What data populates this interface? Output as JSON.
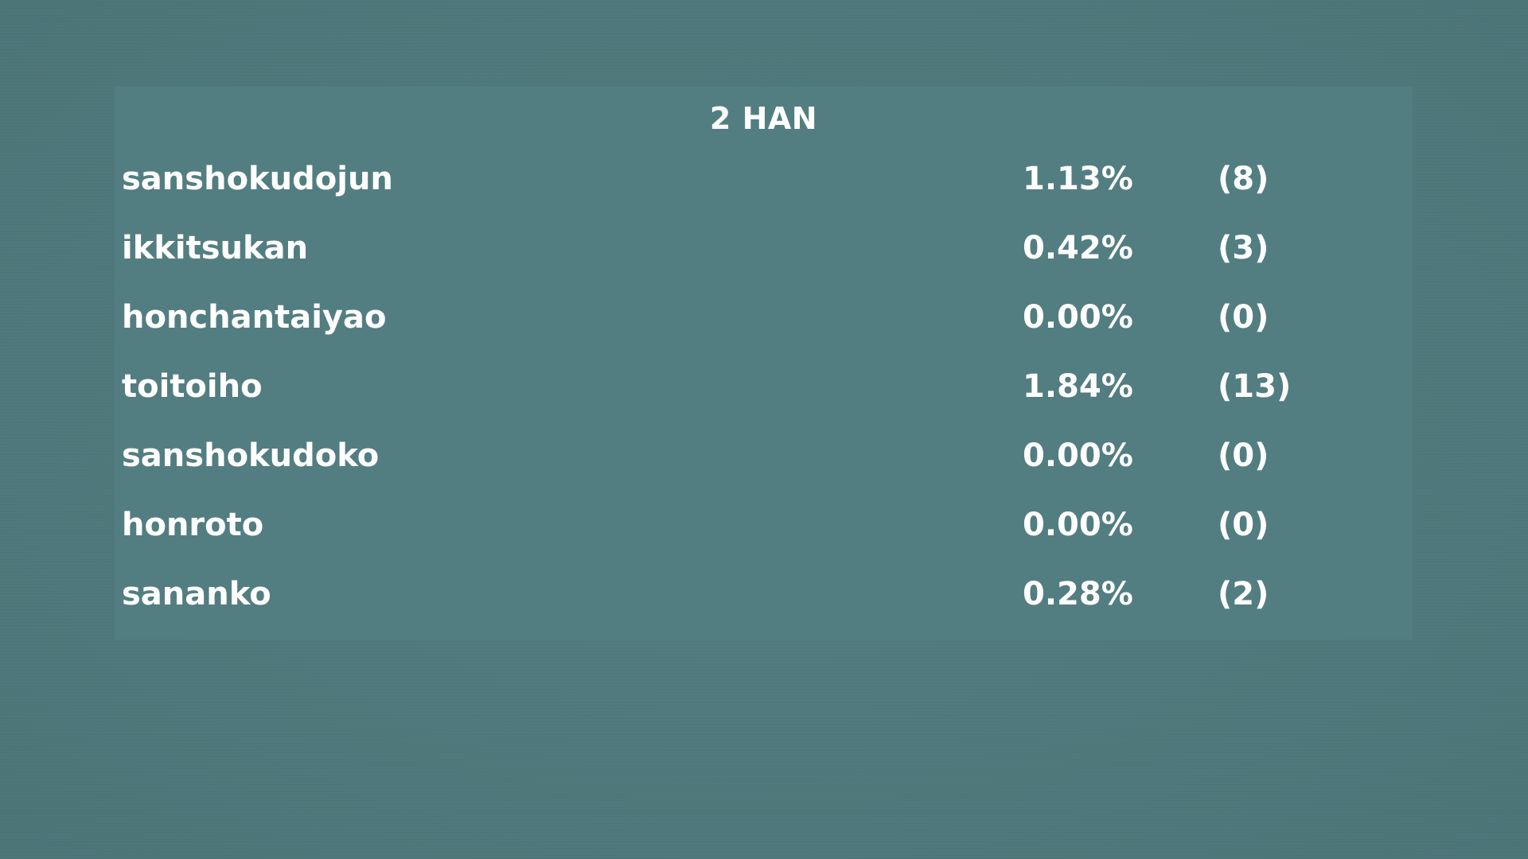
{
  "panel": {
    "title": "2 HAN",
    "rows": [
      {
        "name": "sanshokudojun",
        "percent": "1.13%",
        "count": "(8)"
      },
      {
        "name": "ikkitsukan",
        "percent": "0.42%",
        "count": "(3)"
      },
      {
        "name": "honchantaiyao",
        "percent": "0.00%",
        "count": "(0)"
      },
      {
        "name": "toitoiho",
        "percent": "1.84%",
        "count": "(13)"
      },
      {
        "name": "sanshokudoko",
        "percent": "0.00%",
        "count": "(0)"
      },
      {
        "name": "honroto",
        "percent": "0.00%",
        "count": "(0)"
      },
      {
        "name": "sananko",
        "percent": "0.28%",
        "count": "(2)"
      }
    ]
  },
  "colors": {
    "background": "#4f787b",
    "panel": "#537e81",
    "text": "#ffffff"
  }
}
